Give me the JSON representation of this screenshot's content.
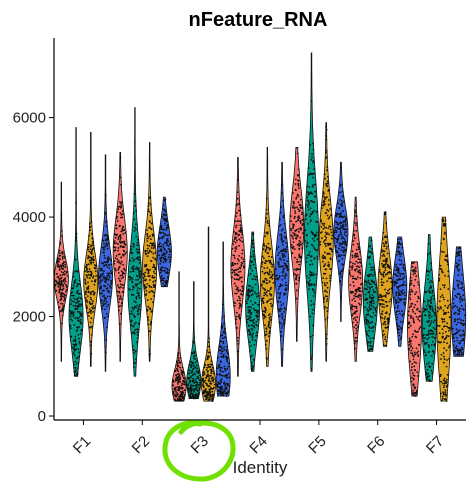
{
  "chart_data": {
    "type": "violin",
    "title": "nFeature_RNA",
    "xlabel": "Identity",
    "ylabel": "",
    "ylim": [
      -80,
      7600
    ],
    "yticks": [
      0,
      2000,
      4000,
      6000
    ],
    "grid": false,
    "legend": "none",
    "categories": [
      "F1",
      "F2",
      "F3",
      "F4",
      "F5",
      "F6",
      "F7"
    ],
    "subgroup_colors": [
      "#F8766D",
      "#00A08A",
      "#E0A41E",
      "#3B67E0"
    ],
    "groups": [
      {
        "label": "F1",
        "violins": [
          {
            "color": "#F8766D",
            "median": 2750,
            "q1": 2450,
            "q3": 3000,
            "min": 1100,
            "max": 4700
          },
          {
            "color": "#00A08A",
            "median": 2000,
            "q1": 1600,
            "q3": 2500,
            "min": 800,
            "max": 5800
          },
          {
            "color": "#E0A41E",
            "median": 2700,
            "q1": 2300,
            "q3": 3050,
            "min": 1000,
            "max": 5700
          },
          {
            "color": "#3B67E0",
            "median": 2800,
            "q1": 2400,
            "q3": 3200,
            "min": 900,
            "max": 5250
          }
        ]
      },
      {
        "label": "F2",
        "violins": [
          {
            "color": "#F8766D",
            "median": 3300,
            "q1": 2800,
            "q3": 3700,
            "min": 1100,
            "max": 5300
          },
          {
            "color": "#00A08A",
            "median": 2600,
            "q1": 2000,
            "q3": 3100,
            "min": 800,
            "max": 6200
          },
          {
            "color": "#E0A41E",
            "median": 3000,
            "q1": 2500,
            "q3": 3400,
            "min": 1100,
            "max": 5500
          },
          {
            "color": "#3B67E0",
            "median": 3300,
            "q1": 2900,
            "q3": 3600,
            "min": 2600,
            "max": 4400
          }
        ]
      },
      {
        "label": "F3",
        "violins": [
          {
            "color": "#F8766D",
            "median": 600,
            "q1": 450,
            "q3": 900,
            "min": 300,
            "max": 2900
          },
          {
            "color": "#00A08A",
            "median": 700,
            "q1": 500,
            "q3": 1000,
            "min": 350,
            "max": 2700
          },
          {
            "color": "#E0A41E",
            "median": 650,
            "q1": 450,
            "q3": 950,
            "min": 300,
            "max": 3800
          },
          {
            "color": "#3B67E0",
            "median": 800,
            "q1": 500,
            "q3": 1300,
            "min": 400,
            "max": 3500
          }
        ]
      },
      {
        "label": "F4",
        "violins": [
          {
            "color": "#F8766D",
            "median": 3000,
            "q1": 2500,
            "q3": 3500,
            "min": 800,
            "max": 5200
          },
          {
            "color": "#00A08A",
            "median": 2200,
            "q1": 1800,
            "q3": 2700,
            "min": 900,
            "max": 3700
          },
          {
            "color": "#E0A41E",
            "median": 2700,
            "q1": 2200,
            "q3": 3200,
            "min": 1000,
            "max": 5400
          },
          {
            "color": "#3B67E0",
            "median": 2900,
            "q1": 2400,
            "q3": 3400,
            "min": 1000,
            "max": 5100
          }
        ]
      },
      {
        "label": "F5",
        "violins": [
          {
            "color": "#F8766D",
            "median": 3800,
            "q1": 3300,
            "q3": 4300,
            "min": 1500,
            "max": 5400
          },
          {
            "color": "#00A08A",
            "median": 3600,
            "q1": 2900,
            "q3": 4400,
            "min": 900,
            "max": 7300
          },
          {
            "color": "#E0A41E",
            "median": 3500,
            "q1": 3000,
            "q3": 4100,
            "min": 1100,
            "max": 5900
          },
          {
            "color": "#3B67E0",
            "median": 3700,
            "q1": 3300,
            "q3": 4000,
            "min": 1900,
            "max": 5100
          }
        ]
      },
      {
        "label": "F6",
        "violins": [
          {
            "color": "#F8766D",
            "median": 2700,
            "q1": 2200,
            "q3": 3100,
            "min": 1100,
            "max": 4400
          },
          {
            "color": "#00A08A",
            "median": 2300,
            "q1": 1800,
            "q3": 2700,
            "min": 1300,
            "max": 3600
          },
          {
            "color": "#E0A41E",
            "median": 2600,
            "q1": 2100,
            "q3": 3000,
            "min": 1400,
            "max": 4100
          },
          {
            "color": "#3B67E0",
            "median": 2600,
            "q1": 2200,
            "q3": 3000,
            "min": 1400,
            "max": 3600
          }
        ]
      },
      {
        "label": "F7",
        "violins": [
          {
            "color": "#F8766D",
            "median": 1800,
            "q1": 1200,
            "q3": 2500,
            "min": 400,
            "max": 3100
          },
          {
            "color": "#00A08A",
            "median": 1800,
            "q1": 1400,
            "q3": 2500,
            "min": 700,
            "max": 3650
          },
          {
            "color": "#E0A41E",
            "median": 1900,
            "q1": 1200,
            "q3": 2800,
            "min": 300,
            "max": 4000
          },
          {
            "color": "#3B67E0",
            "median": 2000,
            "q1": 1500,
            "q3": 2700,
            "min": 1200,
            "max": 3400
          }
        ]
      }
    ]
  },
  "annotation": {
    "color": "#6FE000",
    "highlighted_label": "F3"
  }
}
